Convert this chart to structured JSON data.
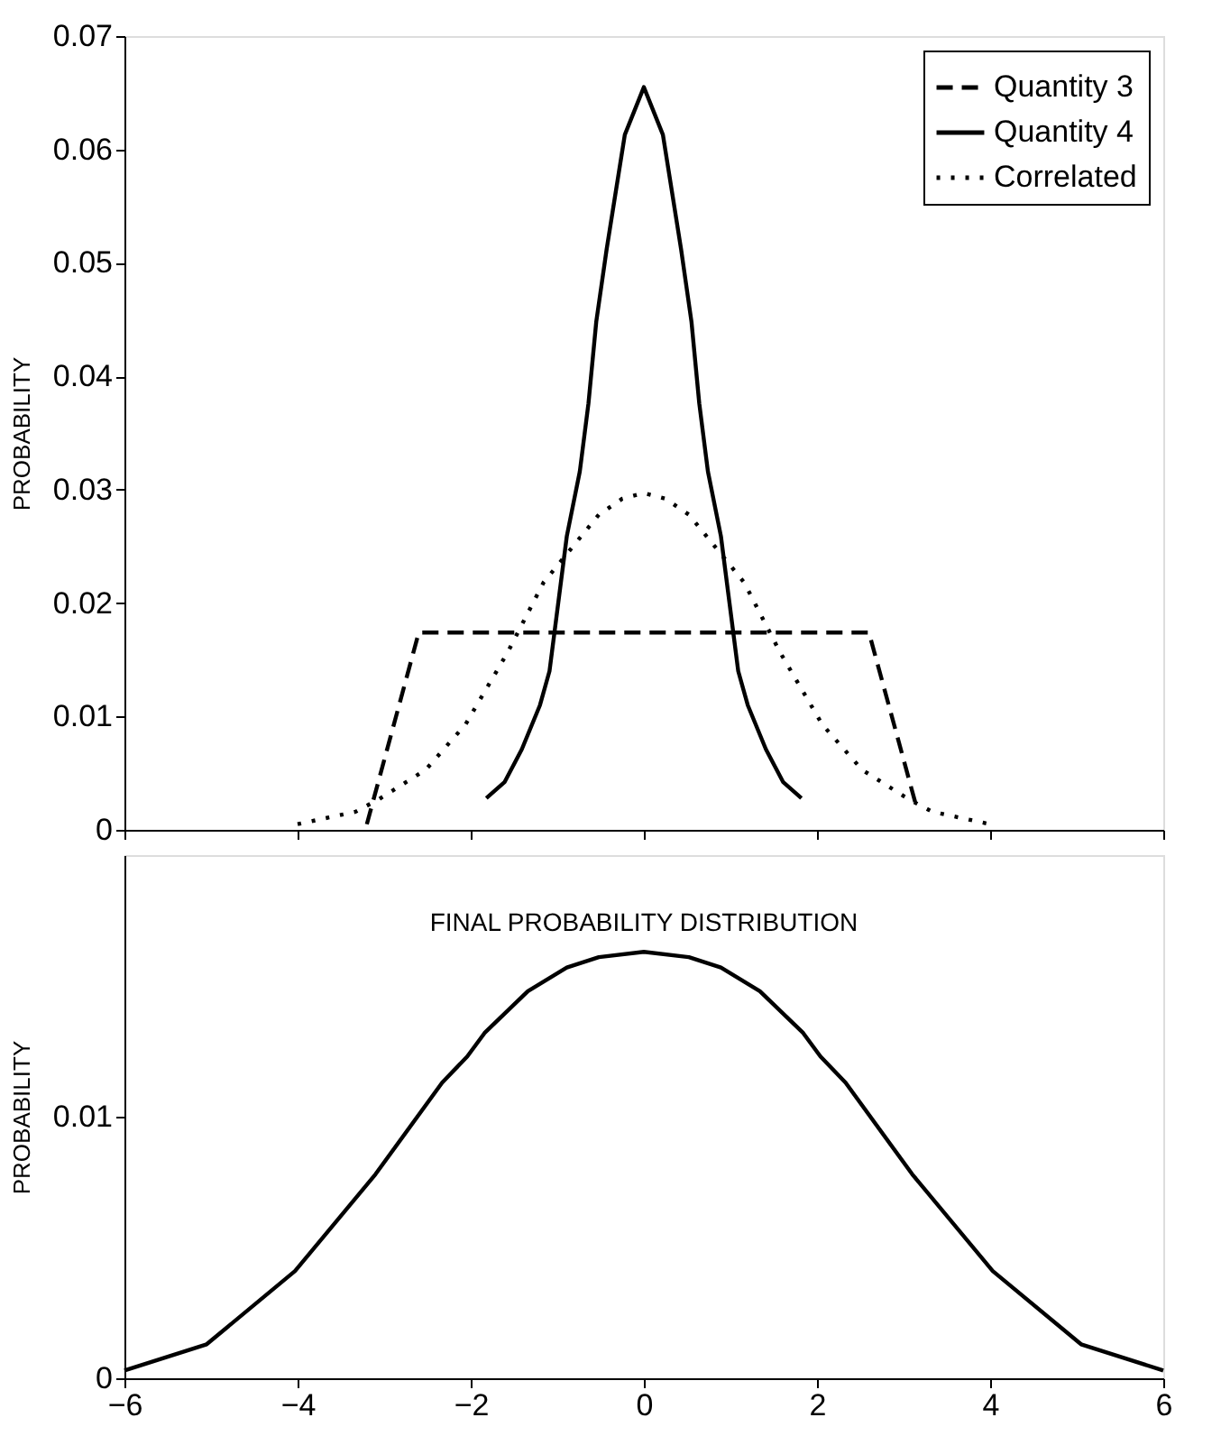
{
  "chart_data": [
    {
      "type": "line",
      "ylabel": "PROBABILITY",
      "xlim": [
        -6,
        6
      ],
      "xticks": [
        -6,
        -4,
        -2,
        0,
        2,
        4,
        6
      ],
      "ylim": [
        0,
        0.07
      ],
      "yticks": [
        {
          "value": 0,
          "label": "0"
        },
        0.01,
        0.02,
        0.03,
        0.04,
        0.05,
        0.06,
        0.07
      ],
      "tick_labels": "y",
      "grid": false,
      "legend": "top right",
      "marker": "none",
      "series": [
        {
          "name": "Quantity 3",
          "color": "#000000",
          "line_style": "dashed",
          "x": [
            -3.2,
            -2.6,
            2.6,
            3.15
          ],
          "values": [
            0.0005,
            0.0174,
            0.0174,
            0.002
          ]
        },
        {
          "name": "Quantity 4",
          "color": "#000000",
          "line_style": "solid",
          "x": [
            -1.82,
            -1.61,
            -1.41,
            -1.2,
            -1.09,
            -0.89,
            -0.74,
            -0.64,
            -0.55,
            -0.43,
            -0.22,
            0,
            0.22,
            0.43,
            0.55,
            0.64,
            0.74,
            0.89,
            1.09,
            1.2,
            1.41,
            1.61,
            1.82
          ],
          "values": [
            0.0028,
            0.0042,
            0.0071,
            0.011,
            0.014,
            0.0259,
            0.0316,
            0.0376,
            0.0448,
            0.0512,
            0.0613,
            0.0655,
            0.0613,
            0.0512,
            0.0448,
            0.0376,
            0.0316,
            0.0259,
            0.014,
            0.011,
            0.0071,
            0.0042,
            0.0028
          ]
        },
        {
          "name": "Correlated",
          "color": "#000000",
          "line_style": "dotted",
          "x": [
            -4.0,
            -3.33,
            -3.06,
            -2.52,
            -2.06,
            -1.57,
            -1.16,
            -0.52,
            -0.25,
            0,
            0.25,
            0.52,
            1.16,
            1.57,
            2.06,
            2.52,
            3.06,
            3.33,
            4.0
          ],
          "values": [
            0.0005,
            0.0016,
            0.0027,
            0.0053,
            0.0093,
            0.0157,
            0.0218,
            0.0278,
            0.0292,
            0.0297,
            0.0292,
            0.0278,
            0.0218,
            0.0157,
            0.0093,
            0.0053,
            0.0027,
            0.0016,
            0.0005
          ]
        }
      ]
    },
    {
      "type": "line",
      "title": "FINAL PROBABILITY DISTRIBUTION",
      "ylabel": "PROBABILITY",
      "xlim": [
        -6,
        6
      ],
      "xticks": [
        -6,
        -4,
        -2,
        0,
        2,
        4,
        6
      ],
      "ylim": [
        0,
        0.02
      ],
      "yticks": [
        {
          "value": 0,
          "label": "0"
        },
        0.01
      ],
      "grid": false,
      "legend": false,
      "marker": "none",
      "series": [
        {
          "color": "#000000",
          "line_style": "solid",
          "x": [
            -6,
            -5.05,
            -4.03,
            -3.1,
            -2.33,
            -2.04,
            -1.84,
            -1.34,
            -0.89,
            -0.52,
            0,
            0.52,
            0.89,
            1.34,
            1.84,
            2.04,
            2.33,
            3.1,
            4.03,
            5.05,
            6
          ],
          "values": [
            0.0003,
            0.0013,
            0.0041,
            0.0078,
            0.0113,
            0.0123,
            0.0132,
            0.0148,
            0.0157,
            0.0161,
            0.0163,
            0.0161,
            0.0157,
            0.0148,
            0.0132,
            0.0123,
            0.0113,
            0.0078,
            0.0041,
            0.0013,
            0.0003
          ]
        }
      ]
    }
  ]
}
